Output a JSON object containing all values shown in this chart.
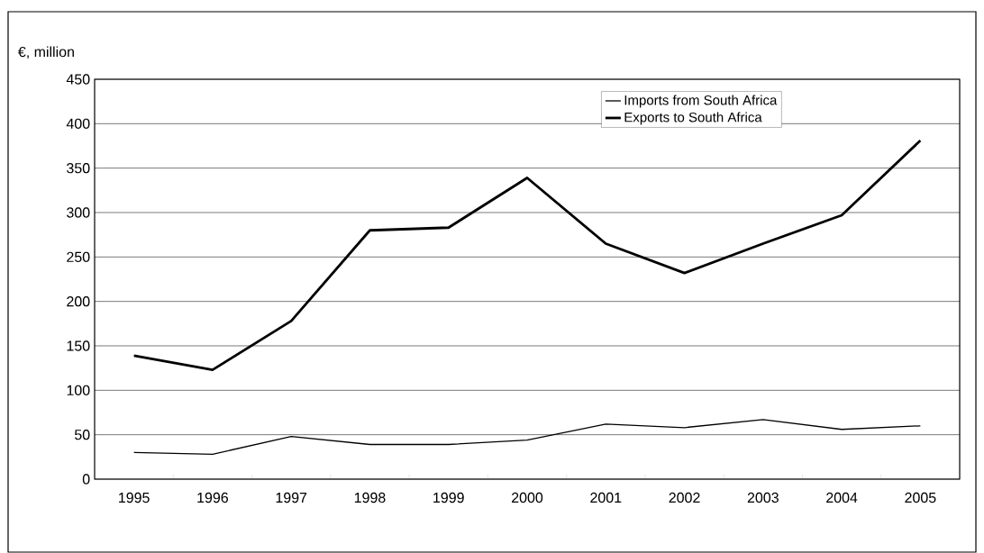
{
  "chart_data": {
    "type": "line",
    "ylabel": "€, million",
    "categories": [
      "1995",
      "1996",
      "1997",
      "1998",
      "1999",
      "2000",
      "2001",
      "2002",
      "2003",
      "2004",
      "2005"
    ],
    "series": [
      {
        "name": "Imports from South Africa",
        "color": "#000000",
        "values": [
          30,
          28,
          48,
          39,
          39,
          44,
          62,
          58,
          67,
          56,
          60
        ]
      },
      {
        "name": "Exports to South Africa",
        "color": "#000000",
        "values": [
          139,
          123,
          178,
          280,
          283,
          339,
          265,
          232,
          265,
          297,
          381
        ]
      }
    ],
    "ylim": [
      0,
      450
    ],
    "yticks": [
      0,
      50,
      100,
      150,
      200,
      250,
      300,
      350,
      400,
      450
    ],
    "grid": "y",
    "legend": "top",
    "marker": "none",
    "line_style": "solid"
  }
}
